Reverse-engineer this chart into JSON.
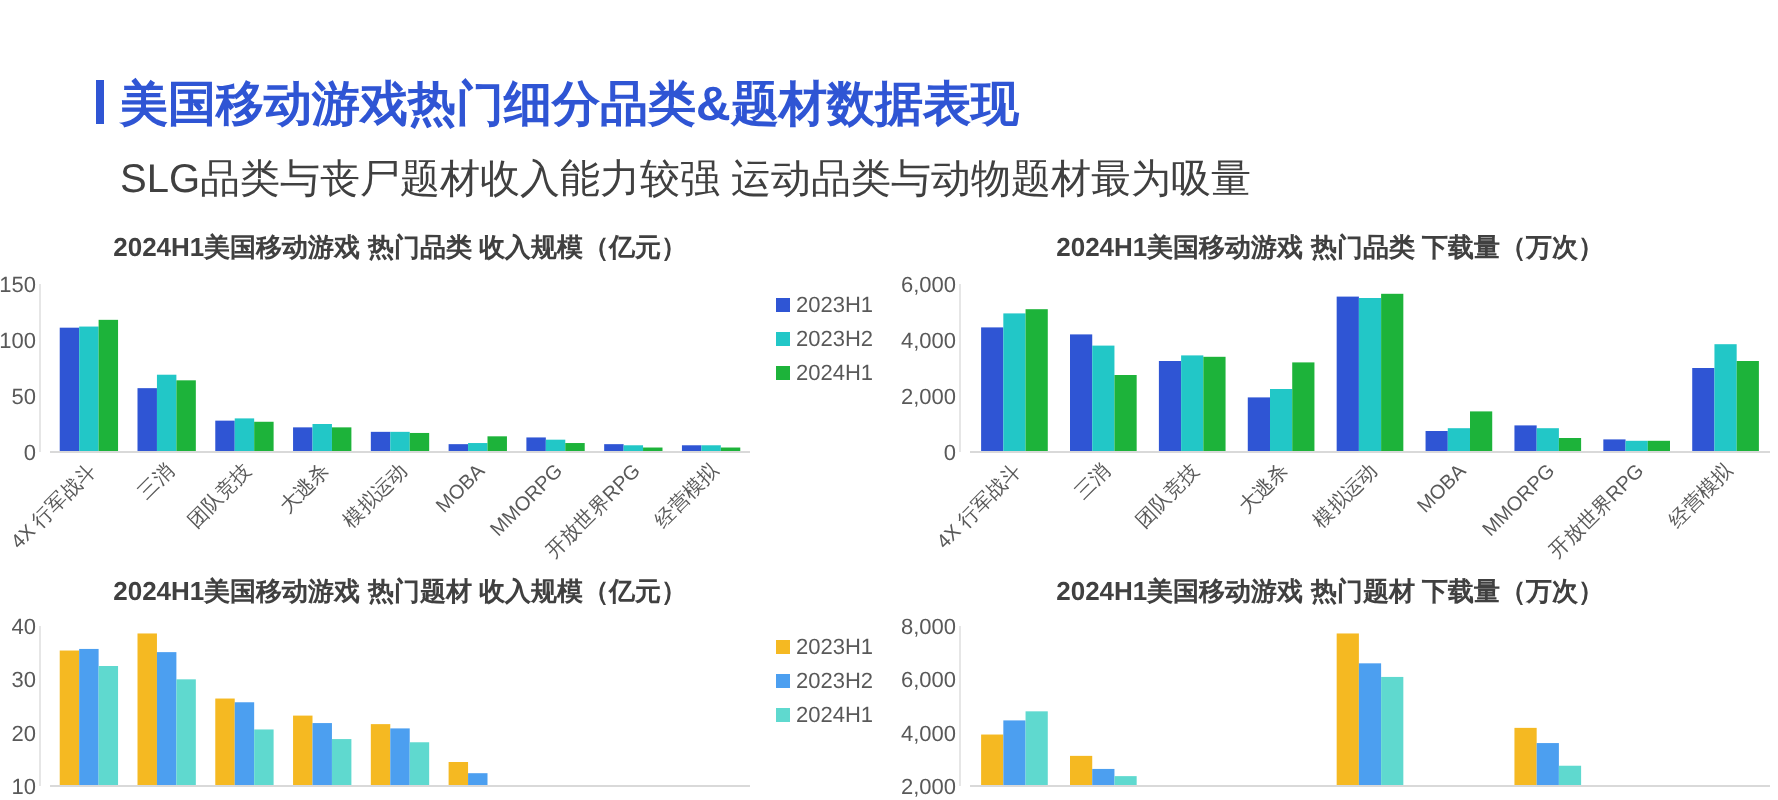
{
  "chart_data": [
    {
      "type": "bar",
      "title": "2024H1美国移动游戏 热门品类 收入规模（亿元）",
      "annotations": [
        "美国移动游戏热门细分品类&题材数据表现",
        "SLG品类与丧尸题材收入能力较强 运动品类与动物题材最为吸量"
      ],
      "categories": [
        "4X 行军战斗",
        "三消",
        "团队竞技",
        "大逃杀",
        "模拟运动",
        "MOBA",
        "MMORPG",
        "开放世界RPG",
        "经营模拟"
      ],
      "series": [
        {
          "name": "2023H1",
          "color": "#2f55d4",
          "values": [
            111,
            57,
            28,
            22,
            18,
            7,
            13,
            7,
            6
          ]
        },
        {
          "name": "2023H2",
          "color": "#22c7c7",
          "values": [
            112,
            69,
            30,
            25,
            18,
            8,
            11,
            6,
            6
          ]
        },
        {
          "name": "2024H1",
          "color": "#1db33a",
          "values": [
            118,
            64,
            27,
            22,
            17,
            14,
            8,
            4,
            4
          ]
        }
      ],
      "ylim": [
        0,
        150
      ],
      "yticks": [
        0,
        50,
        100,
        150
      ],
      "legend": "right"
    },
    {
      "type": "bar",
      "title": "2024H1美国移动游戏 热门品类 下载量（万次）",
      "categories": [
        "4X 行军战斗",
        "三消",
        "团队竞技",
        "大逃杀",
        "模拟运动",
        "MOBA",
        "MMORPG",
        "开放世界RPG",
        "经营模拟"
      ],
      "series": [
        {
          "color": "#2f55d4",
          "values": [
            4450,
            4200,
            3250,
            1950,
            5550,
            750,
            950,
            450,
            3000
          ]
        },
        {
          "color": "#22c7c7",
          "values": [
            4950,
            3800,
            3450,
            2250,
            5500,
            850,
            850,
            400,
            3850
          ]
        },
        {
          "color": "#1db33a",
          "values": [
            5100,
            2750,
            3400,
            3200,
            5650,
            1450,
            500,
            400,
            3250
          ]
        }
      ],
      "ylim": [
        0,
        6000
      ],
      "yticks": [
        0,
        {
          "value": 2000,
          "label": "2,000"
        },
        {
          "value": 4000,
          "label": "4,000"
        },
        {
          "value": 6000,
          "label": "6,000"
        }
      ]
    },
    {
      "type": "bar",
      "title": "2024H1美国移动游戏 热门题材 收入规模（亿元）",
      "categories": [
        null,
        null,
        null,
        null,
        null,
        null,
        null,
        null,
        null
      ],
      "series": [
        {
          "name": "2023H1",
          "color": "#f5b922",
          "values": [
            35.4,
            38.6,
            26.4,
            23.2,
            21.6,
            14.5,
            null,
            null,
            null
          ]
        },
        {
          "name": "2023H2",
          "color": "#4c9ff0",
          "values": [
            35.7,
            35.1,
            25.7,
            21.8,
            20.8,
            12.4,
            null,
            null,
            null
          ]
        },
        {
          "name": "2024H1",
          "color": "#5fd9cf",
          "values": [
            32.5,
            30,
            20.6,
            18.8,
            18.2,
            null,
            null,
            null,
            null
          ]
        }
      ],
      "ylim": [
        10,
        40
      ],
      "yticks": [
        10,
        20,
        30,
        40
      ],
      "legend": "right",
      "tick_labels": "y"
    },
    {
      "type": "bar",
      "title": "2024H1美国移动游戏 热门题材 下载量（万次）",
      "categories": [
        null,
        null,
        null,
        null,
        null,
        null,
        null,
        null,
        null
      ],
      "series": [
        {
          "color": "#f5b922",
          "values": [
            3930,
            3130,
            null,
            null,
            7720,
            null,
            4180,
            null,
            null
          ]
        },
        {
          "color": "#4c9ff0",
          "values": [
            4460,
            2640,
            null,
            null,
            6600,
            null,
            3610,
            null,
            null
          ]
        },
        {
          "color": "#5fd9cf",
          "values": [
            4800,
            2370,
            null,
            null,
            6090,
            null,
            2760,
            null,
            null
          ]
        }
      ],
      "ylim": [
        2000,
        8000
      ],
      "yticks": [
        {
          "value": 2000,
          "label": "2,000"
        },
        {
          "value": 4000,
          "label": "4,000"
        },
        {
          "value": 6000,
          "label": "6,000"
        },
        {
          "value": 8000,
          "label": "8,000"
        }
      ],
      "tick_labels": "y"
    }
  ]
}
